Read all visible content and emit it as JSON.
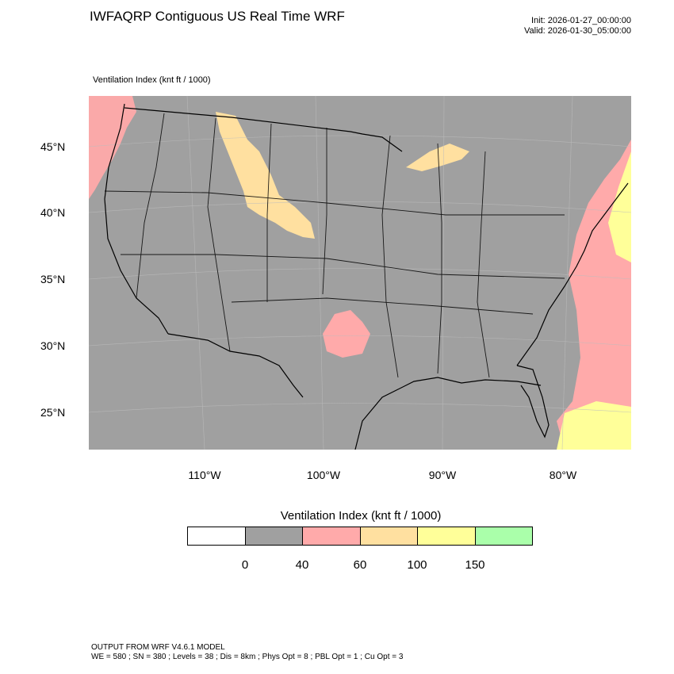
{
  "header": {
    "title": "IWFAQRP Contiguous US Real Time WRF",
    "init": "Init: 2026-01-27_00:00:00",
    "valid": "Valid: 2026-01-30_05:00:00"
  },
  "field_label": "Ventilation Index   (knt ft / 1000)",
  "map": {
    "background_color": "#a0a0a0",
    "longitude_labels": [
      "110°W",
      "100°W",
      "90°W",
      "80°W"
    ],
    "latitude_labels": [
      "45°N",
      "40°N",
      "35°N",
      "30°N",
      "25°N"
    ],
    "shading": [
      {
        "name": "pacific-northwest-coast",
        "color": "#ffaaaa"
      },
      {
        "name": "northern-rockies",
        "color": "#ffe0a0"
      },
      {
        "name": "southern-plains",
        "color": "#ffaaaa"
      },
      {
        "name": "great-lakes",
        "color": "#ffe0a0"
      },
      {
        "name": "atlantic-ocean",
        "color": "#ffaaaa"
      },
      {
        "name": "atlantic-northeast",
        "color": "#ffff99"
      },
      {
        "name": "bahamas",
        "color": "#ffff99"
      }
    ]
  },
  "colorbar": {
    "title": "Ventilation Index  (knt ft / 1000)",
    "colors": [
      "#ffffff",
      "#a0a0a0",
      "#ffaaaa",
      "#ffe0a0",
      "#ffff99",
      "#aaffaa"
    ],
    "tick_labels": [
      "0",
      "40",
      "60",
      "100",
      "150"
    ]
  },
  "footer": {
    "line1": "OUTPUT FROM WRF V4.6.1 MODEL",
    "line2": "WE = 580 ; SN = 380 ; Levels = 38 ; Dis = 8km ; Phys Opt = 8 ; PBL Opt = 1 ; Cu Opt = 3"
  }
}
